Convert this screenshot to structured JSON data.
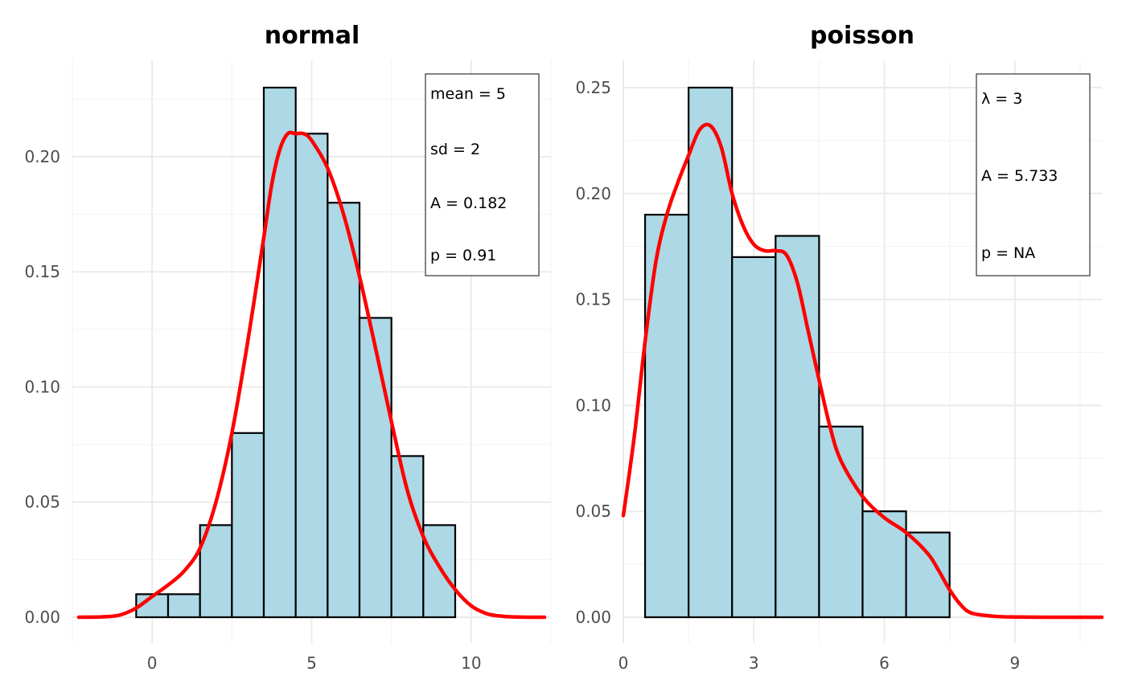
{
  "chart_data": [
    {
      "type": "bar",
      "title": "normal",
      "xlabel": "",
      "ylabel": "",
      "xlim": [
        -2.5,
        12.5
      ],
      "ylim": [
        0,
        0.23
      ],
      "x_ticks": [
        0,
        5,
        10
      ],
      "x_tick_labels": [
        "0",
        "5",
        "10"
      ],
      "y_ticks": [
        0,
        0.05,
        0.1,
        0.15,
        0.2
      ],
      "y_tick_labels": [
        "0.00",
        "0.05",
        "0.10",
        "0.15",
        "0.20"
      ],
      "grid": true,
      "bins": [
        {
          "x0": -0.5,
          "x1": 0.5,
          "value": 0.01
        },
        {
          "x0": 0.5,
          "x1": 1.5,
          "value": 0.01
        },
        {
          "x0": 1.5,
          "x1": 2.5,
          "value": 0.04
        },
        {
          "x0": 2.5,
          "x1": 3.5,
          "value": 0.08
        },
        {
          "x0": 3.5,
          "x1": 4.5,
          "value": 0.23
        },
        {
          "x0": 4.5,
          "x1": 5.5,
          "value": 0.21
        },
        {
          "x0": 5.5,
          "x1": 6.5,
          "value": 0.18
        },
        {
          "x0": 6.5,
          "x1": 7.5,
          "value": 0.13
        },
        {
          "x0": 7.5,
          "x1": 8.5,
          "value": 0.07
        },
        {
          "x0": 8.5,
          "x1": 9.5,
          "value": 0.04
        }
      ],
      "density": {
        "x": [
          -2.3,
          -1.5,
          -1.0,
          -0.5,
          0.0,
          0.5,
          1.0,
          1.5,
          2.0,
          2.5,
          3.0,
          3.5,
          3.75,
          4.0,
          4.25,
          4.5,
          4.75,
          5.0,
          5.5,
          6.0,
          6.5,
          7.0,
          7.5,
          8.0,
          8.5,
          9.0,
          9.5,
          10.0,
          10.5,
          11.0,
          11.5,
          12.3
        ],
        "y": [
          0.0,
          0.0002,
          0.001,
          0.004,
          0.009,
          0.014,
          0.02,
          0.03,
          0.05,
          0.08,
          0.12,
          0.165,
          0.188,
          0.203,
          0.21,
          0.21,
          0.21,
          0.207,
          0.195,
          0.175,
          0.148,
          0.117,
          0.085,
          0.055,
          0.035,
          0.022,
          0.012,
          0.005,
          0.0015,
          0.0004,
          0.0001,
          0.0
        ]
      },
      "legend_position": "top-right",
      "stats": [
        "mean = 5",
        "sd = 2",
        "A = 0.182",
        "p = 0.91"
      ]
    },
    {
      "type": "bar",
      "title": "poisson",
      "xlabel": "",
      "ylabel": "",
      "xlim": [
        0,
        11
      ],
      "ylim": [
        0,
        0.25
      ],
      "x_ticks": [
        0,
        3,
        6,
        9
      ],
      "x_tick_labels": [
        "0",
        "3",
        "6",
        "9"
      ],
      "y_ticks": [
        0,
        0.05,
        0.1,
        0.15,
        0.2,
        0.25
      ],
      "y_tick_labels": [
        "0.00",
        "0.05",
        "0.10",
        "0.15",
        "0.20",
        "0.25"
      ],
      "grid": true,
      "bins": [
        {
          "x0": 0.5,
          "x1": 1.5,
          "value": 0.19
        },
        {
          "x0": 1.5,
          "x1": 2.5,
          "value": 0.25
        },
        {
          "x0": 2.5,
          "x1": 3.5,
          "value": 0.17
        },
        {
          "x0": 3.5,
          "x1": 4.5,
          "value": 0.18
        },
        {
          "x0": 4.5,
          "x1": 5.5,
          "value": 0.09
        },
        {
          "x0": 5.5,
          "x1": 6.5,
          "value": 0.05
        },
        {
          "x0": 6.5,
          "x1": 7.5,
          "value": 0.04
        }
      ],
      "density": {
        "x": [
          0.0,
          0.25,
          0.5,
          0.75,
          1.0,
          1.25,
          1.5,
          1.75,
          2.0,
          2.25,
          2.5,
          2.75,
          3.0,
          3.25,
          3.5,
          3.75,
          4.0,
          4.25,
          4.5,
          4.75,
          5.0,
          5.5,
          6.0,
          6.5,
          7.0,
          7.25,
          7.5,
          7.75,
          8.0,
          8.5,
          9.0,
          10.0,
          11.0
        ],
        "y": [
          0.048,
          0.085,
          0.13,
          0.168,
          0.19,
          0.205,
          0.218,
          0.23,
          0.232,
          0.222,
          0.2,
          0.185,
          0.176,
          0.173,
          0.173,
          0.171,
          0.158,
          0.135,
          0.112,
          0.09,
          0.074,
          0.057,
          0.047,
          0.04,
          0.03,
          0.022,
          0.013,
          0.006,
          0.002,
          0.0005,
          0.0001,
          0.0,
          0.0
        ]
      },
      "legend_position": "top-right",
      "stats": [
        "λ = 3",
        "A = 5.733",
        "p = NA"
      ]
    }
  ]
}
